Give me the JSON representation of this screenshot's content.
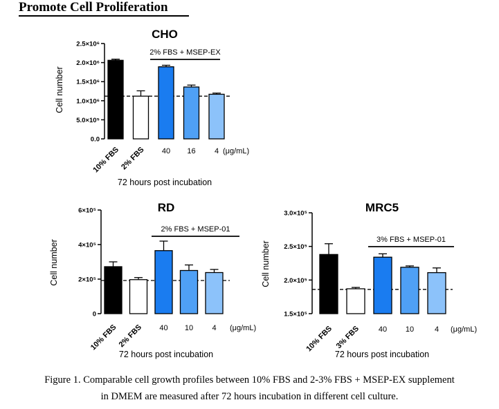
{
  "heading": "Promote Cell Proliferation",
  "caption": {
    "line1": "Figure 1. Comparable cell growth profiles between 10% FBS and 2-3% FBS + MSEP-EX supplement",
    "line2": "in DMEM are measured after 72 hours incubation in different cell culture."
  },
  "colors": {
    "black": "#000000",
    "white": "#ffffff",
    "blue_dark": "#1a7cf0",
    "blue_mid": "#4fa0f5",
    "blue_light": "#8cc2fa"
  },
  "chart_data": [
    {
      "type": "bar",
      "title": "CHO",
      "ylabel": "Cell number",
      "xlabel": "72 hours post incubation",
      "ylim": [
        0,
        2500000
      ],
      "yticks": [
        0,
        500000,
        1000000,
        1500000,
        2000000,
        2500000
      ],
      "ytick_labels": [
        "0.0",
        "5.0×10⁵",
        "1.0×10⁶",
        "1.5×10⁶",
        "2.0×10⁶",
        "2.5×10⁶"
      ],
      "categories": [
        "10% FBS",
        "2% FBS",
        "40",
        "16",
        "4"
      ],
      "rotated_categories": [
        true,
        true,
        false,
        false,
        false
      ],
      "unit_label": "(μg/mL)",
      "values": [
        2060000,
        1120000,
        1890000,
        1360000,
        1170000
      ],
      "errors": [
        30000,
        140000,
        40000,
        50000,
        30000
      ],
      "bar_colors": [
        "black",
        "white",
        "blue_dark",
        "blue_mid",
        "blue_light"
      ],
      "reference_line": 1120000,
      "bracket_label": "2% FBS + MSEP-EX"
    },
    {
      "type": "bar",
      "title": "RD",
      "ylabel": "Cell number",
      "xlabel": "72 hours post incubation",
      "ylim": [
        0,
        600000
      ],
      "yticks": [
        0,
        200000,
        400000,
        600000
      ],
      "ytick_labels": [
        "0",
        "2×10⁵",
        "4×10⁵",
        "6×10⁵"
      ],
      "categories": [
        "10% FBS",
        "2% FBS",
        "40",
        "10",
        "4"
      ],
      "rotated_categories": [
        true,
        true,
        false,
        false,
        false
      ],
      "unit_label": "(μg/mL)",
      "values": [
        272000,
        197000,
        365000,
        250000,
        238000
      ],
      "errors": [
        28000,
        12000,
        55000,
        32000,
        18000
      ],
      "bar_colors": [
        "black",
        "white",
        "blue_dark",
        "blue_mid",
        "blue_light"
      ],
      "reference_line": 192000,
      "bracket_label": "2% FBS + MSEP-01"
    },
    {
      "type": "bar",
      "title": "MRC5",
      "ylabel": "Cell number",
      "xlabel": "72 hours post incubation",
      "ylim": [
        150000,
        300000
      ],
      "yticks": [
        150000,
        200000,
        250000,
        300000
      ],
      "ytick_labels": [
        "1.5×10⁵",
        "2.0×10⁵",
        "2.5×10⁵",
        "3.0×10⁵"
      ],
      "categories": [
        "10% FBS",
        "3% FBS",
        "40",
        "10",
        "4"
      ],
      "rotated_categories": [
        true,
        true,
        false,
        false,
        false
      ],
      "unit_label": "(μg/mL)",
      "values": [
        238000,
        187000,
        234000,
        219000,
        211000
      ],
      "errors": [
        16000,
        2000,
        5000,
        2000,
        7000
      ],
      "bar_colors": [
        "black",
        "white",
        "blue_dark",
        "blue_mid",
        "blue_light"
      ],
      "reference_line": 186000,
      "bracket_label": "3% FBS + MSEP-01"
    }
  ]
}
